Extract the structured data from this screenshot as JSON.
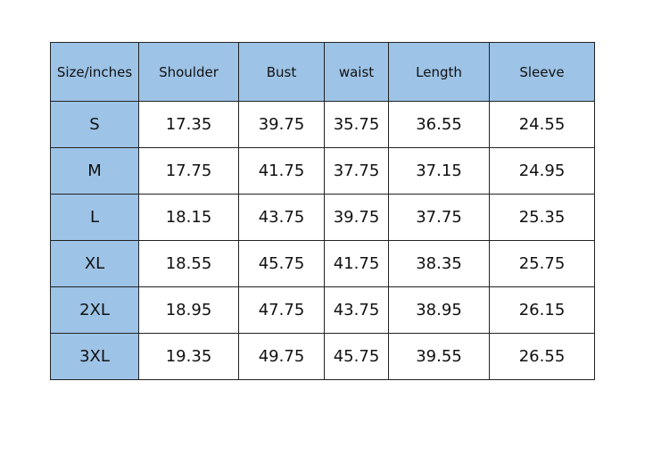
{
  "table": {
    "header": [
      "Size/inches",
      "Shoulder",
      "Bust",
      "waist",
      "Length",
      "Sleeve"
    ],
    "rows": [
      [
        "S",
        "17.35",
        "39.75",
        "35.75",
        "36.55",
        "24.55"
      ],
      [
        "M",
        "17.75",
        "41.75",
        "37.75",
        "37.15",
        "24.95"
      ],
      [
        "L",
        "18.15",
        "43.75",
        "39.75",
        "37.75",
        "25.35"
      ],
      [
        "XL",
        "18.55",
        "45.75",
        "41.75",
        "38.35",
        "25.75"
      ],
      [
        "2XL",
        "18.95",
        "47.75",
        "43.75",
        "38.95",
        "26.15"
      ],
      [
        "3XL",
        "19.35",
        "49.75",
        "45.75",
        "39.55",
        "26.55"
      ]
    ]
  }
}
